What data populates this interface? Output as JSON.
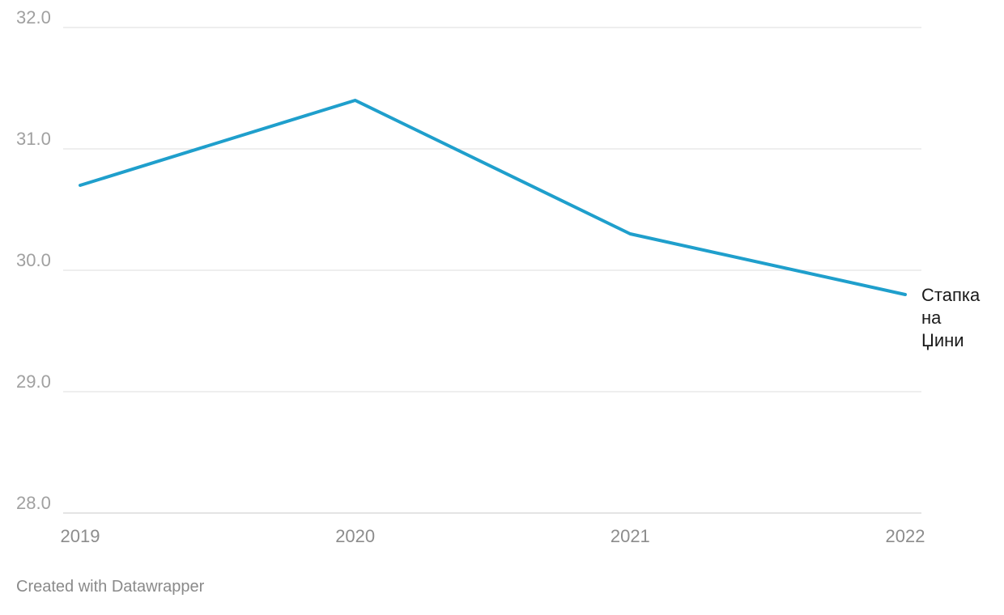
{
  "chart_data": {
    "type": "line",
    "x": [
      "2019",
      "2020",
      "2021",
      "2022"
    ],
    "series": [
      {
        "name": "Стапка на Џини",
        "label_lines": [
          "Стапка",
          "на",
          "Џини"
        ],
        "values": [
          30.7,
          31.4,
          30.3,
          29.8
        ],
        "color": "#1f9fcc"
      }
    ],
    "yticks": [
      "28.0",
      "29.0",
      "30.0",
      "31.0",
      "32.0"
    ],
    "ylim": [
      28,
      32
    ],
    "grid": true,
    "legend": "inline-end"
  },
  "footer": {
    "credit": "Created with Datawrapper"
  }
}
